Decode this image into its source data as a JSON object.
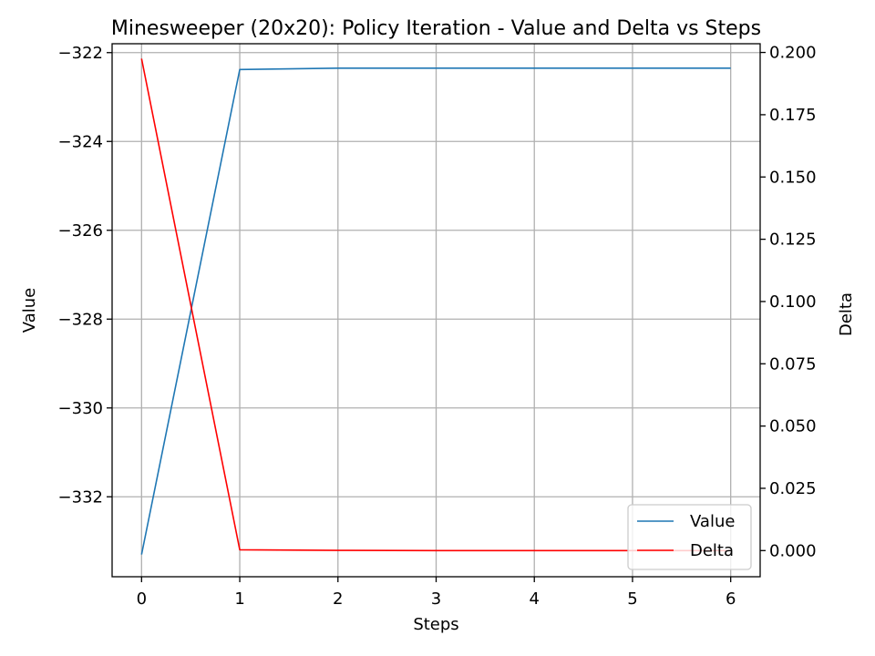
{
  "chart_data": {
    "type": "line",
    "title": "Minesweeper (20x20): Policy Iteration - Value and Delta vs Steps",
    "xlabel": "Steps",
    "ylabel_left": "Value",
    "ylabel_right": "Delta",
    "x": [
      0,
      1,
      2,
      3,
      4,
      5,
      6
    ],
    "xlim": [
      -0.3,
      6.3
    ],
    "ylim_left": [
      -333.8,
      -321.8
    ],
    "ylim_right": [
      -0.0105,
      0.2035
    ],
    "x_ticks": [
      0,
      1,
      2,
      3,
      4,
      5,
      6
    ],
    "y_left_ticks": [
      -332,
      -330,
      -328,
      -326,
      -324,
      -322
    ],
    "y_left_tick_labels": [
      "−332",
      "−330",
      "−328",
      "−326",
      "−324",
      "−322"
    ],
    "y_right_ticks": [
      0.0,
      0.025,
      0.05,
      0.075,
      0.1,
      0.125,
      0.15,
      0.175,
      0.2
    ],
    "y_right_tick_labels": [
      "0.000",
      "0.025",
      "0.050",
      "0.075",
      "0.100",
      "0.125",
      "0.150",
      "0.175",
      "0.200"
    ],
    "grid": true,
    "legend_position": "lower-right",
    "series": [
      {
        "name": "Value",
        "axis": "left",
        "color": "#1f77b4",
        "values": [
          -333.3,
          -322.38,
          -322.35,
          -322.35,
          -322.35,
          -322.35,
          -322.35
        ]
      },
      {
        "name": "Delta",
        "axis": "right",
        "color": "#ff0000",
        "values": [
          0.1975,
          0.0003,
          0.0001,
          0.0,
          0.0,
          0.0,
          0.0
        ]
      }
    ]
  }
}
